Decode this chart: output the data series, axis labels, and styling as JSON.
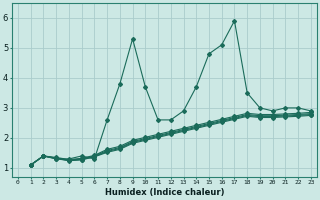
{
  "xlabel": "Humidex (Indice chaleur)",
  "bg_color": "#cce8e4",
  "grid_color": "#aacccc",
  "line_color": "#1a6b5a",
  "xlim": [
    -0.5,
    23.5
  ],
  "ylim": [
    0.7,
    6.5
  ],
  "xticks": [
    0,
    1,
    2,
    3,
    4,
    5,
    6,
    7,
    8,
    9,
    10,
    11,
    12,
    13,
    14,
    15,
    16,
    17,
    18,
    19,
    20,
    21,
    22,
    23
  ],
  "yticks": [
    1,
    2,
    3,
    4,
    5,
    6
  ],
  "lines": [
    {
      "x": [
        1,
        2,
        3,
        4,
        5,
        6,
        7,
        8,
        9,
        10,
        11,
        12,
        13,
        14,
        15,
        16,
        17,
        18,
        19,
        20,
        21,
        22,
        23
      ],
      "y": [
        1.1,
        1.4,
        1.3,
        1.3,
        1.4,
        1.3,
        2.6,
        3.8,
        5.3,
        3.7,
        2.6,
        2.6,
        2.9,
        3.7,
        4.8,
        5.1,
        5.9,
        3.5,
        3.0,
        2.9,
        3.0,
        3.0,
        2.9
      ]
    },
    {
      "x": [
        1,
        2,
        3,
        4,
        5,
        6,
        7,
        8,
        9,
        10,
        11,
        12,
        13,
        14,
        15,
        16,
        17,
        18,
        19,
        20,
        21,
        22,
        23
      ],
      "y": [
        1.1,
        1.4,
        1.35,
        1.28,
        1.32,
        1.42,
        1.62,
        1.72,
        1.92,
        2.02,
        2.12,
        2.22,
        2.32,
        2.42,
        2.52,
        2.62,
        2.72,
        2.82,
        2.78,
        2.78,
        2.8,
        2.82,
        2.85
      ]
    },
    {
      "x": [
        1,
        2,
        3,
        4,
        5,
        6,
        7,
        8,
        9,
        10,
        11,
        12,
        13,
        14,
        15,
        16,
        17,
        18,
        19,
        20,
        21,
        22,
        23
      ],
      "y": [
        1.1,
        1.4,
        1.33,
        1.26,
        1.3,
        1.4,
        1.58,
        1.68,
        1.88,
        1.98,
        2.08,
        2.18,
        2.28,
        2.38,
        2.48,
        2.58,
        2.68,
        2.78,
        2.74,
        2.74,
        2.76,
        2.78,
        2.81
      ]
    },
    {
      "x": [
        1,
        2,
        3,
        4,
        5,
        6,
        7,
        8,
        9,
        10,
        11,
        12,
        13,
        14,
        15,
        16,
        17,
        18,
        19,
        20,
        21,
        22,
        23
      ],
      "y": [
        1.1,
        1.4,
        1.32,
        1.25,
        1.28,
        1.38,
        1.55,
        1.65,
        1.85,
        1.95,
        2.05,
        2.15,
        2.25,
        2.35,
        2.45,
        2.55,
        2.65,
        2.75,
        2.71,
        2.71,
        2.73,
        2.75,
        2.78
      ]
    },
    {
      "x": [
        1,
        2,
        3,
        4,
        5,
        6,
        7,
        8,
        9,
        10,
        11,
        12,
        13,
        14,
        15,
        16,
        17,
        18,
        19,
        20,
        21,
        22,
        23
      ],
      "y": [
        1.1,
        1.4,
        1.31,
        1.24,
        1.27,
        1.37,
        1.52,
        1.62,
        1.82,
        1.92,
        2.02,
        2.12,
        2.22,
        2.32,
        2.42,
        2.52,
        2.62,
        2.72,
        2.68,
        2.68,
        2.7,
        2.72,
        2.75
      ]
    }
  ]
}
